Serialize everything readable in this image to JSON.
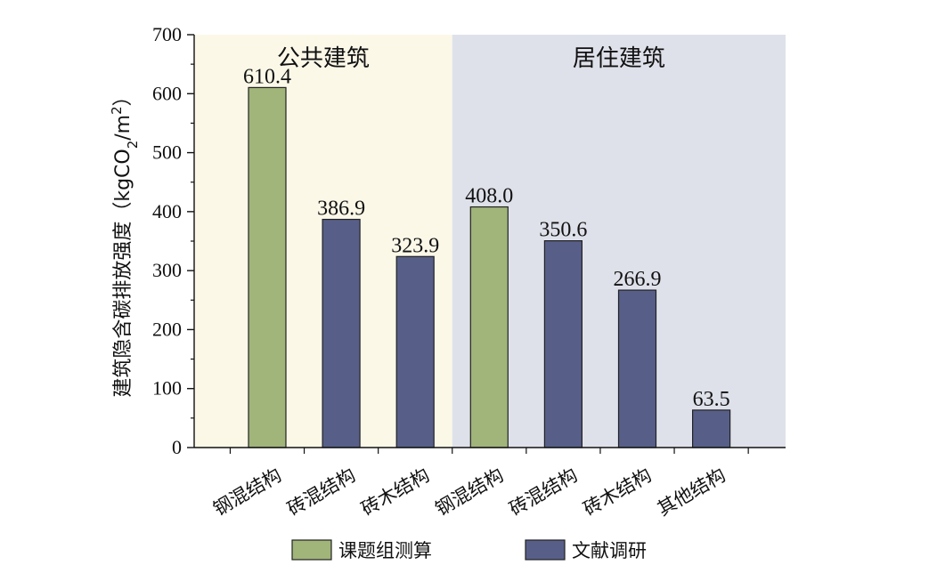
{
  "chart_data": {
    "type": "bar",
    "categories": [
      "钢混结构",
      "砖混结构",
      "砖木结构",
      "钢混结构",
      "砖混结构",
      "砖木结构",
      "其他结构"
    ],
    "values": [
      610.4,
      386.9,
      323.9,
      408.0,
      350.6,
      266.9,
      63.5
    ],
    "value_labels": [
      "610.4",
      "386.9",
      "323.9",
      "408.0",
      "350.6",
      "266.9",
      "63.5"
    ],
    "bar_source": [
      0,
      1,
      1,
      0,
      1,
      1,
      1
    ],
    "regions": [
      {
        "label": "公共建筑",
        "categories": [
          0,
          1,
          2
        ],
        "color": "#fbf8e8"
      },
      {
        "label": "居住建筑",
        "categories": [
          3,
          4,
          5,
          6
        ],
        "color": "#dfe1ea"
      }
    ],
    "ylabel_main": "建筑隐含碳排放强度（kgCO",
    "ylabel_sub": "2",
    "ylabel_mid": "/m",
    "ylabel_sup": "2",
    "ylabel_end": "）",
    "ylim": [
      0,
      700
    ],
    "yticks": [
      0,
      100,
      200,
      300,
      400,
      500,
      600,
      700
    ],
    "ytick_labels": [
      "0",
      "100",
      "200",
      "300",
      "400",
      "500",
      "600",
      "700"
    ],
    "legend": [
      {
        "label": "课题组测算",
        "color": "#a1b47a"
      },
      {
        "label": "文献调研",
        "color": "#575f89"
      }
    ],
    "grid": false
  }
}
